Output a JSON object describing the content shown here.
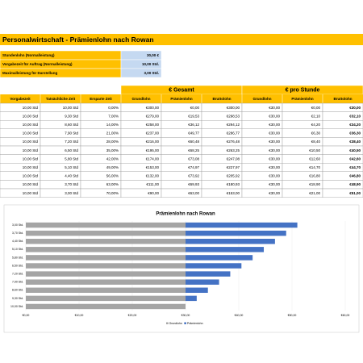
{
  "title": "Personalwirtschaft - Prämienlohn nach Rowan",
  "params": [
    [
      "Stundenlohn (Normalleistung)",
      "30,00 €"
    ],
    [
      "Vorgabezeit für Auftrag (Normalleistung)",
      "10,00 Std."
    ],
    [
      "Maximalleistung für Darstellung",
      "3,00 Std."
    ]
  ],
  "table": {
    "groups": [
      "€ Gesamt",
      "€ pro Stunde"
    ],
    "headers": [
      "Vorgabezeit",
      "Tatsächliche Zeit",
      "Ersparte Zeit",
      "Grundlohn",
      "Prämienlohn",
      "Bruttolohn",
      "Grundlohn",
      "Prämienlohn",
      "Bruttolohn"
    ],
    "rows": [
      [
        "10,00 Std",
        "10,00 Std",
        "0,00%",
        "€300,00",
        "€0,00",
        "€300,00",
        "€30,00",
        "€0,00",
        "€30,00"
      ],
      [
        "10,00 Std",
        "9,30 Std",
        "7,00%",
        "€279,00",
        "€19,53",
        "€298,53",
        "€30,00",
        "€2,10",
        "€32,10"
      ],
      [
        "10,00 Std",
        "8,60 Std",
        "14,00%",
        "€258,00",
        "€36,12",
        "€294,12",
        "€30,00",
        "€4,20",
        "€34,20"
      ],
      [
        "10,00 Std",
        "7,90 Std",
        "21,00%",
        "€237,00",
        "€49,77",
        "€286,77",
        "€30,00",
        "€6,30",
        "€36,30"
      ],
      [
        "10,00 Std",
        "7,20 Std",
        "28,00%",
        "€216,00",
        "€60,48",
        "€276,48",
        "€30,00",
        "€8,40",
        "€38,40"
      ],
      [
        "10,00 Std",
        "6,50 Std",
        "35,00%",
        "€195,00",
        "€68,25",
        "€263,25",
        "€30,00",
        "€10,50",
        "€40,50"
      ],
      [
        "10,00 Std",
        "5,80 Std",
        "42,00%",
        "€174,00",
        "€73,08",
        "€247,08",
        "€30,00",
        "€12,60",
        "€42,60"
      ],
      [
        "10,00 Std",
        "5,10 Std",
        "49,00%",
        "€153,00",
        "€74,97",
        "€227,97",
        "€30,00",
        "€14,70",
        "€44,70"
      ],
      [
        "10,00 Std",
        "4,40 Std",
        "56,00%",
        "€132,00",
        "€73,92",
        "€205,92",
        "€30,00",
        "€16,80",
        "€46,80"
      ],
      [
        "10,00 Std",
        "3,70 Std",
        "63,00%",
        "€111,00",
        "€69,93",
        "€180,93",
        "€30,00",
        "€18,90",
        "€48,90"
      ],
      [
        "10,00 Std",
        "3,00 Std",
        "70,00%",
        "€90,00",
        "€63,00",
        "€153,00",
        "€30,00",
        "€21,00",
        "€51,00"
      ]
    ]
  },
  "chart_data": {
    "type": "stacked-barh",
    "title": "Prämienlohn nach Rowan",
    "categories": [
      "3,00 Std.",
      "3,70 Std.",
      "4,40 Std.",
      "5,10 Std.",
      "5,80 Std.",
      "6,50 Std.",
      "7,20 Std.",
      "7,90 Std.",
      "8,60 Std.",
      "9,30 Std.",
      "10,00 Std."
    ],
    "series": [
      {
        "name": "Grundlohn",
        "color": "#a5a5a5",
        "values": [
          30,
          30,
          30,
          30,
          30,
          30,
          30,
          30,
          30,
          30,
          30
        ]
      },
      {
        "name": "Prämienlohn",
        "color": "#4472c4",
        "values": [
          21,
          18.9,
          16.8,
          14.7,
          12.6,
          10.5,
          8.4,
          6.3,
          4.2,
          2.1,
          0
        ]
      }
    ],
    "xlim": [
      0,
      60
    ],
    "xticks": [
      {
        "value": 0,
        "label": "€0,00"
      },
      {
        "value": 10,
        "label": "€10,00"
      },
      {
        "value": 20,
        "label": "€20,00"
      },
      {
        "value": 30,
        "label": "€30,00"
      },
      {
        "value": 40,
        "label": "€40,00"
      },
      {
        "value": 50,
        "label": "€50,00"
      },
      {
        "value": 60,
        "label": "€60,00"
      }
    ],
    "grid": true,
    "legend": "bottom"
  }
}
